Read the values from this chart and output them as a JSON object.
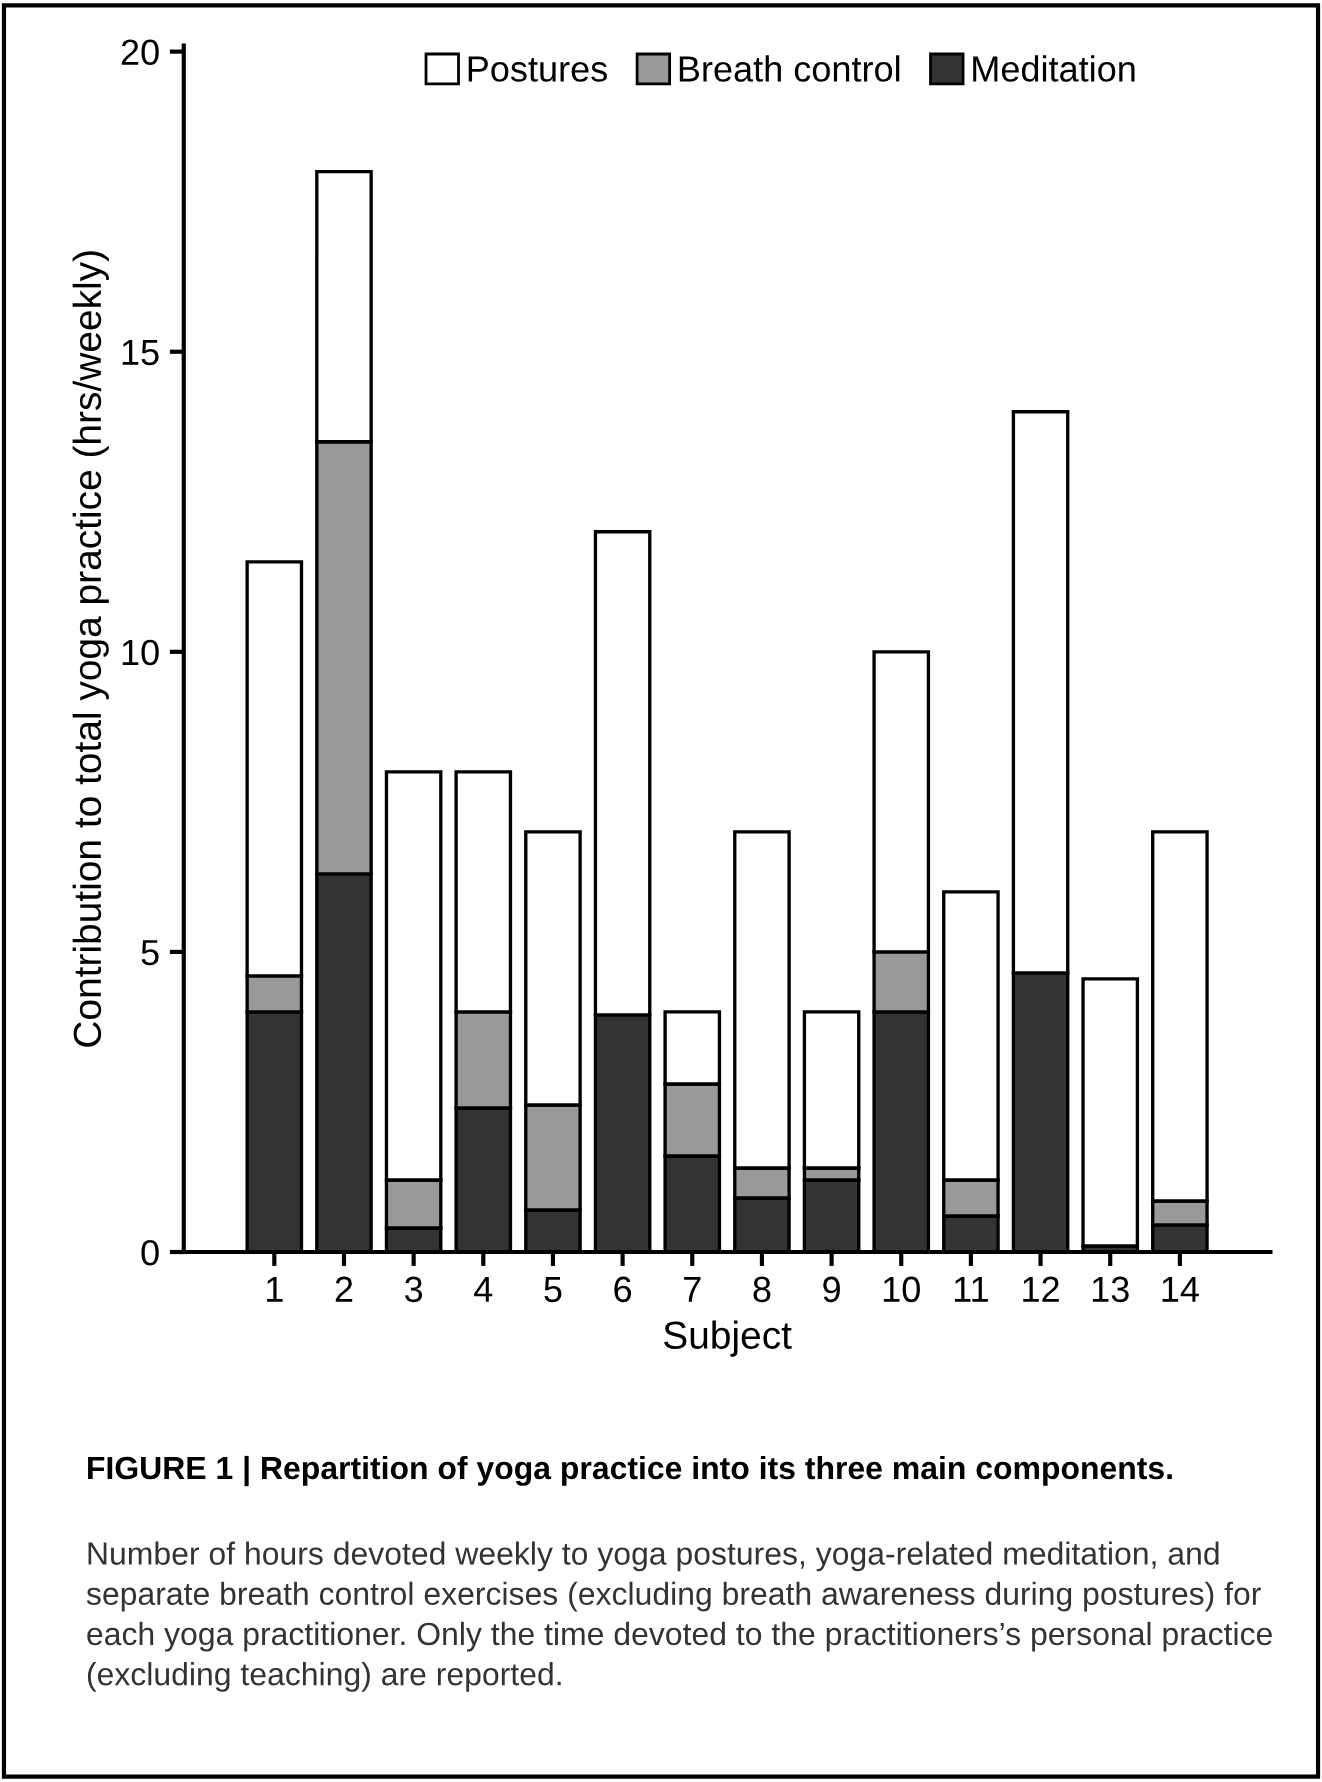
{
  "chart_data": {
    "type": "bar",
    "stacked": true,
    "title": "FIGURE 1 | Repartition of yoga practice into its three main components.",
    "xlabel": "Subject",
    "ylabel": "Contribution to total yoga practice (hrs/weekly)",
    "categories": [
      "1",
      "2",
      "3",
      "4",
      "5",
      "6",
      "7",
      "8",
      "9",
      "10",
      "11",
      "12",
      "13",
      "14"
    ],
    "series": [
      {
        "name": "Meditation",
        "color": "#333333",
        "values": [
          4,
          6.3,
          0.4,
          2.4,
          0.7,
          3.95,
          1.6,
          0.9,
          1.2,
          4,
          0.6,
          4.65,
          0.1,
          0.45
        ]
      },
      {
        "name": "Breath control",
        "color": "#999999",
        "values": [
          0.6,
          7.2,
          0.8,
          1.6,
          1.75,
          0,
          1.2,
          0.5,
          0.2,
          1,
          0.6,
          0,
          0,
          0.4
        ]
      },
      {
        "name": "Postures",
        "color": "#ffffff",
        "values": [
          6.9,
          4.5,
          6.8,
          4,
          4.55,
          8.05,
          1.2,
          5.6,
          2.6,
          5,
          4.8,
          9.35,
          4.45,
          6.15
        ]
      }
    ],
    "ylim": [
      0,
      20.1
    ],
    "yticks": [
      0,
      5,
      10,
      15,
      20
    ],
    "grid": false,
    "legend": "top",
    "annotations": [
      "Number of hours devoted weekly to yoga postures, yoga-related meditation, and separate breath control exercises (excluding breath awareness during postures) for each yoga practitioner. Only the time devoted to the practitioners’s personal practice (excluding teaching) are reported."
    ]
  }
}
